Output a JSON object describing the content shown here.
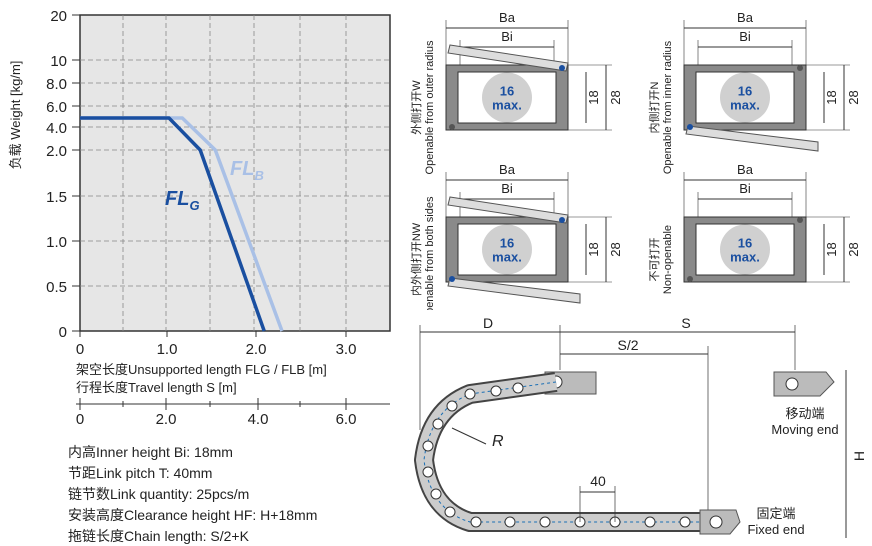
{
  "chart_data": {
    "type": "line",
    "ylabel": "负载 Weight [kg/m]",
    "xlabel_1": "架空长度Unsupported length FLG / FLB [m]",
    "xlabel_2": "行程长度Travel length S [m]",
    "y_ticks": [
      "20",
      "10",
      "8.0",
      "6.0",
      "4.0",
      "2.0",
      "1.5",
      "1.0",
      "0.5",
      "0"
    ],
    "x_ticks": [
      "0",
      "1.0",
      "2.0",
      "3.0"
    ],
    "x2_ticks": [
      "0",
      "2.0",
      "4.0",
      "6.0"
    ],
    "series": [
      {
        "name": "FLG",
        "color": "#1a4fa0",
        "points": [
          [
            0,
            4.0
          ],
          [
            1.0,
            4.0
          ],
          [
            1.35,
            2.0
          ],
          [
            2.07,
            0
          ]
        ]
      },
      {
        "name": "FLB",
        "color": "#a9c0e6",
        "points": [
          [
            0,
            4.0
          ],
          [
            1.15,
            4.0
          ],
          [
            1.52,
            2.0
          ],
          [
            2.27,
            0
          ]
        ]
      }
    ],
    "series_labels": {
      "flg": "FL",
      "flg_sub": "G",
      "flb": "FL",
      "flb_sub": "B"
    }
  },
  "specs": {
    "inner_height": "内高Inner height Bi:  18mm",
    "link_pitch": "节距Link pitch T:  40mm",
    "link_quantity": "链节数Link quantity:  25pcs/m",
    "clearance_height": "安装高度Clearance height HF:  H+18mm",
    "chain_length": "拖链长度Chain length:  S/2+K"
  },
  "cross_sections": {
    "ba": "Ba",
    "bi": "Bi",
    "max_number": "16",
    "max_word": "max.",
    "dim_inner": "18",
    "dim_outer": "28",
    "types": [
      {
        "label_cn": "外侧打开W",
        "label_en": "Openable from outer radius"
      },
      {
        "label_cn": "内侧打开N",
        "label_en": "Openable from inner radius"
      },
      {
        "label_cn": "内外侧打开NW",
        "label_en": "Openable from both sides"
      },
      {
        "label_cn": "不可打开",
        "label_en": "Non-openable"
      }
    ]
  },
  "chain": {
    "d": "D",
    "s": "S",
    "s_half": "S/2",
    "r": "R",
    "h": "H",
    "pitch": "40",
    "moving_cn": "移动端",
    "moving_en": "Moving end",
    "fixed_cn": "固定端",
    "fixed_en": "Fixed end"
  }
}
